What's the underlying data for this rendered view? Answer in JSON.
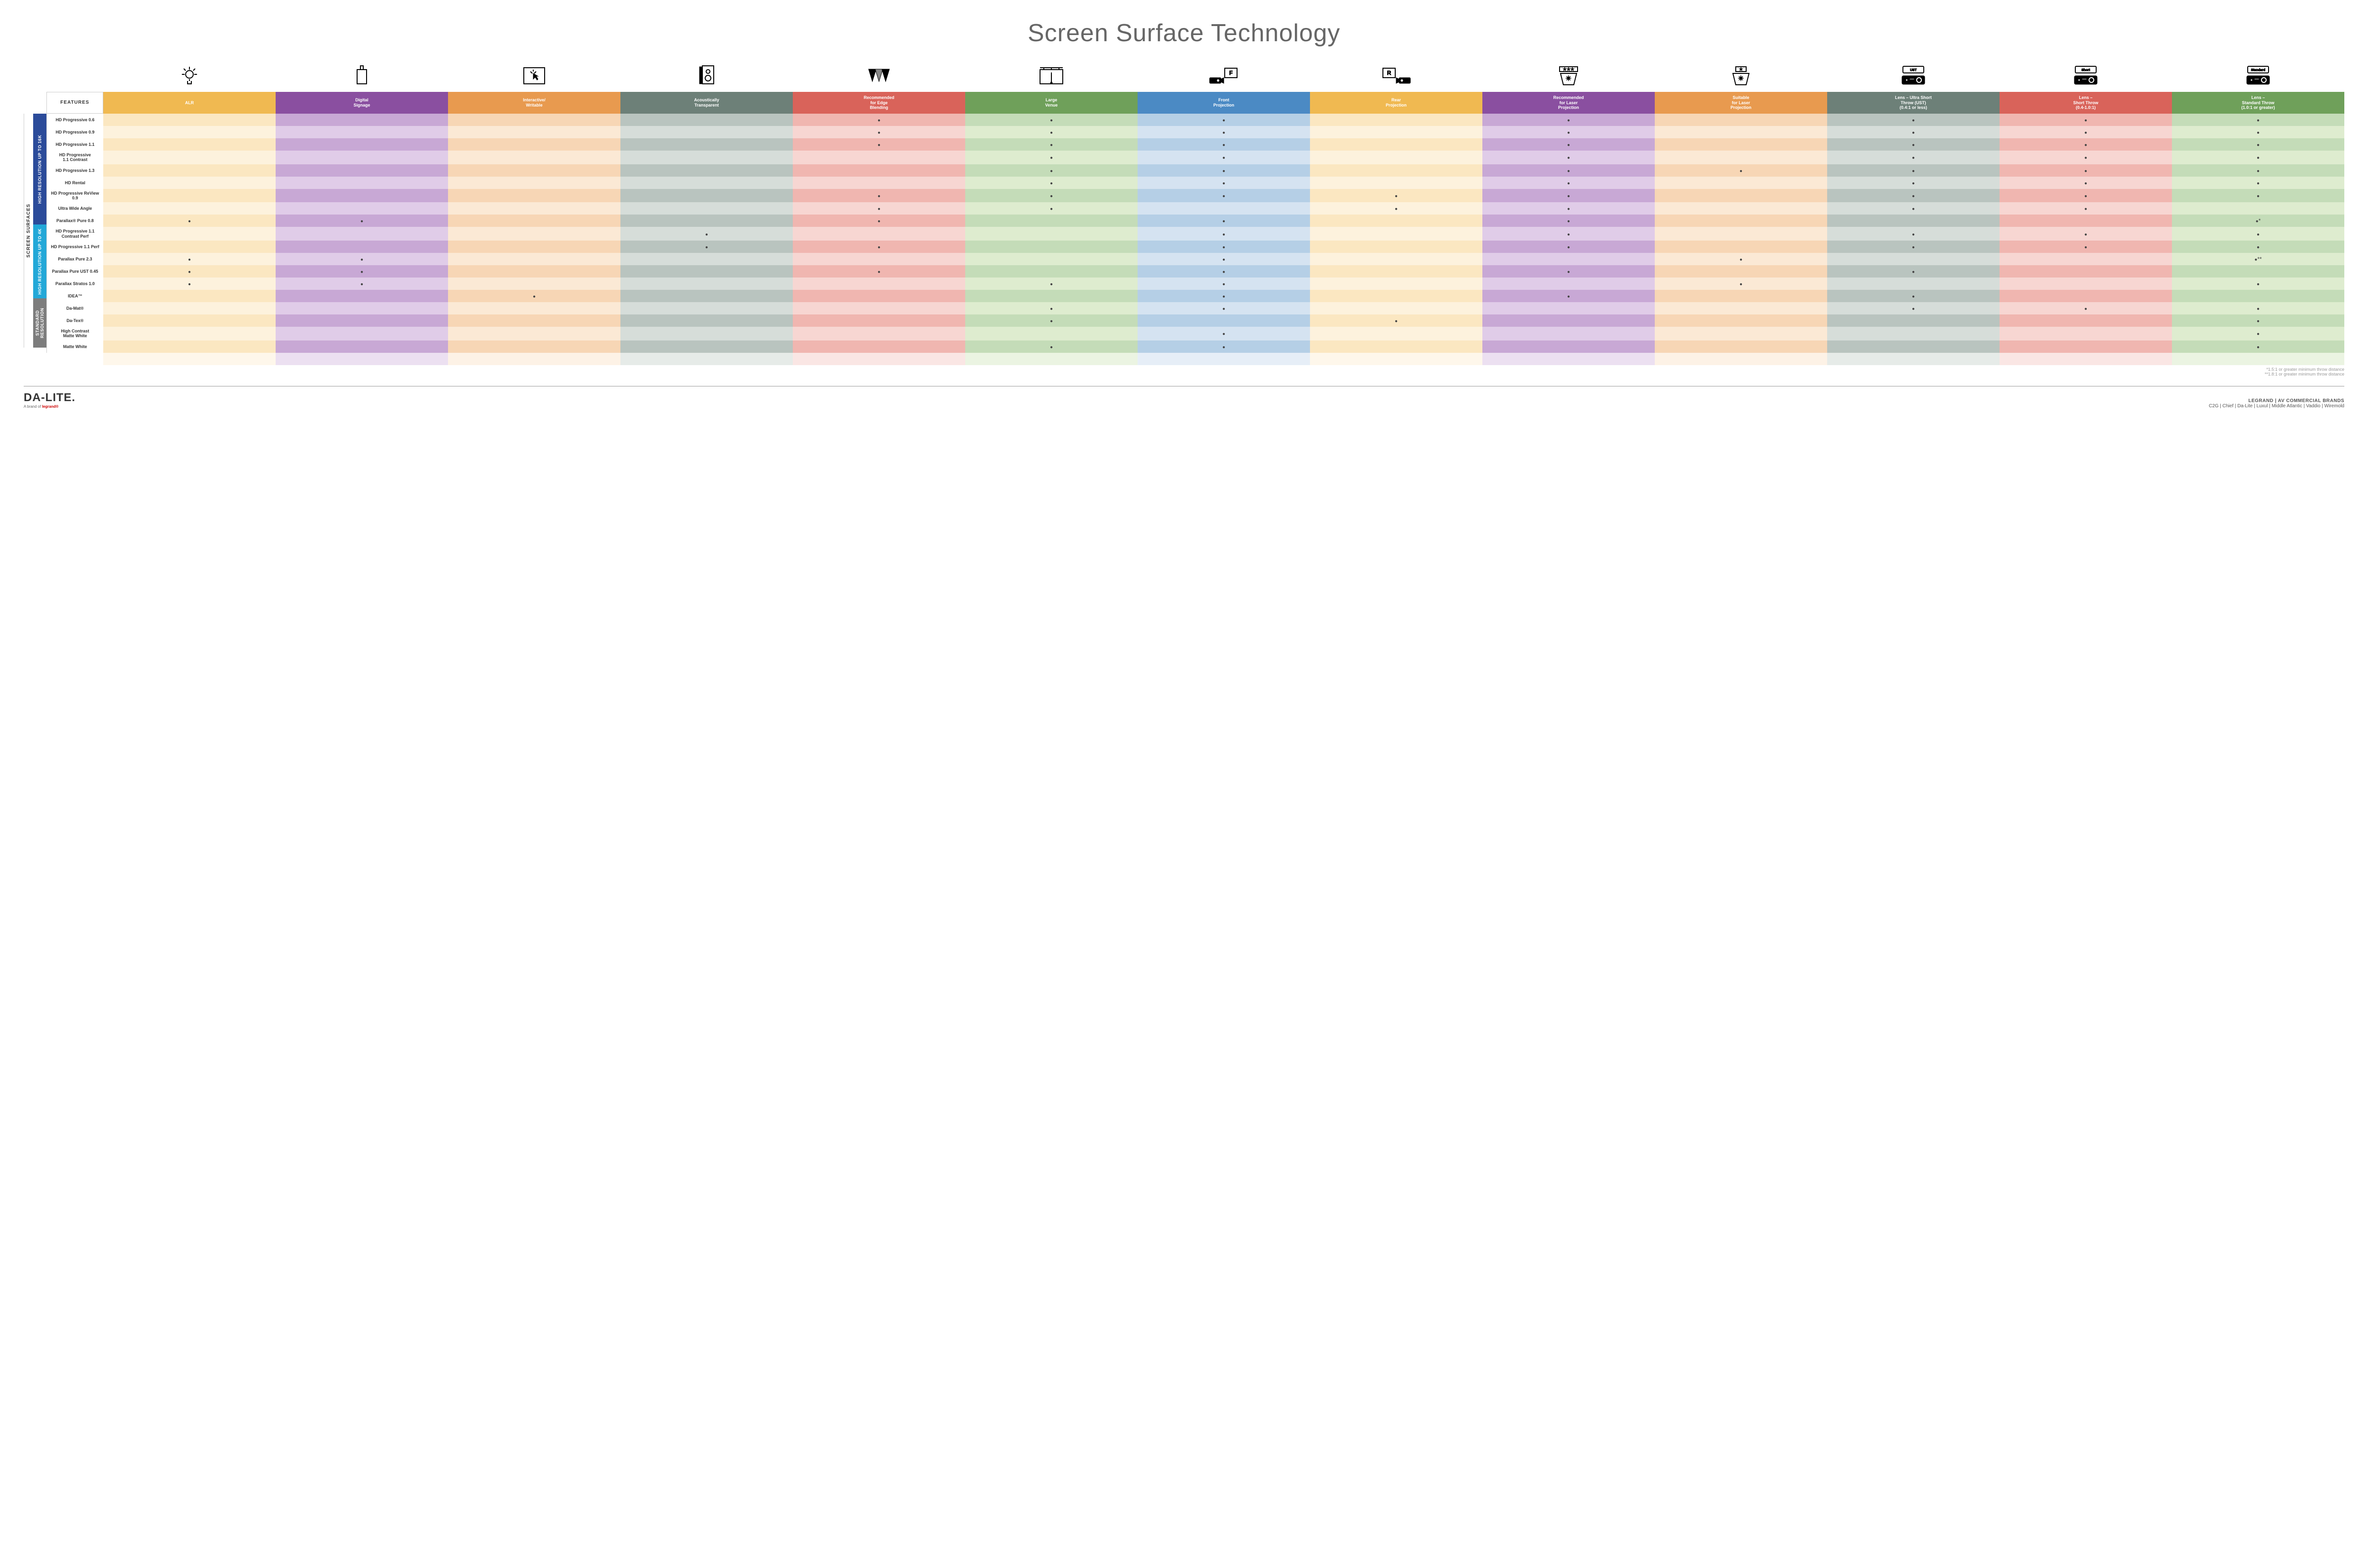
{
  "title": "Screen Surface Technology",
  "features_label": "FEATURES",
  "side_label": "SCREEN SURFACES",
  "colors": {
    "group_16k": "#2b4b9a",
    "group_4k": "#23a8d8",
    "group_std": "#7d7d7d",
    "dot": "#555555"
  },
  "columns": [
    {
      "key": "alr",
      "label": "ALR",
      "color": "#f0b951",
      "light": "#fbe7c1",
      "lighter": "#fdf2dd"
    },
    {
      "key": "signage",
      "label": "Digital\nSignage",
      "color": "#8a4fa0",
      "light": "#c8a8d5",
      "lighter": "#e0cce8"
    },
    {
      "key": "interactive",
      "label": "Interactive/\nWritable",
      "color": "#e89a4f",
      "light": "#f7d6b5",
      "lighter": "#fbe9d5"
    },
    {
      "key": "acoustic",
      "label": "Acoustically\nTransparent",
      "color": "#6d8078",
      "light": "#b9c4bf",
      "lighter": "#d6ddd9"
    },
    {
      "key": "edge",
      "label": "Recommended\nfor Edge\nBlending",
      "color": "#d9635a",
      "light": "#f0b6b0",
      "lighter": "#f7d6d2"
    },
    {
      "key": "large",
      "label": "Large\nVenue",
      "color": "#6fa05a",
      "light": "#c4dcb8",
      "lighter": "#deeccf"
    },
    {
      "key": "front",
      "label": "Front\nProjection",
      "color": "#4b8ac4",
      "light": "#b5cfe6",
      "lighter": "#d5e3f1"
    },
    {
      "key": "rear",
      "label": "Rear\nProjection",
      "color": "#f0b951",
      "light": "#fbe7c1",
      "lighter": "#fdf2dd"
    },
    {
      "key": "reclaser",
      "label": "Recommended\nfor Laser\nProjection",
      "color": "#8a4fa0",
      "light": "#c8a8d5",
      "lighter": "#e0cce8"
    },
    {
      "key": "suitlaser",
      "label": "Suitable\nfor Laser\nProjection",
      "color": "#e89a4f",
      "light": "#f7d6b5",
      "lighter": "#fbe9d5"
    },
    {
      "key": "ust",
      "label": "Lens – Ultra Short\nThrow (UST)\n(0.4:1 or less)",
      "color": "#6d8078",
      "light": "#b9c4bf",
      "lighter": "#d6ddd9"
    },
    {
      "key": "short",
      "label": "Lens –\nShort Throw\n(0.4-1.0:1)",
      "color": "#d9635a",
      "light": "#f0b6b0",
      "lighter": "#f7d6d2"
    },
    {
      "key": "std",
      "label": "Lens –\nStandard Throw\n(1.0:1 or greater)",
      "color": "#6fa05a",
      "light": "#c4dcb8",
      "lighter": "#deeccf"
    }
  ],
  "groups": [
    {
      "label": "HIGH RESOLUTION UP TO 16K",
      "color": "#2b4b9a",
      "rows": [
        {
          "label": "HD Progressive 0.6",
          "dots": [
            "edge",
            "large",
            "front",
            "reclaser",
            "ust",
            "short",
            "std"
          ]
        },
        {
          "label": "HD Progressive 0.9",
          "dots": [
            "edge",
            "large",
            "front",
            "reclaser",
            "ust",
            "short",
            "std"
          ]
        },
        {
          "label": "HD Progressive 1.1",
          "dots": [
            "edge",
            "large",
            "front",
            "reclaser",
            "ust",
            "short",
            "std"
          ]
        },
        {
          "label": "HD Progressive\n1.1 Contrast",
          "dots": [
            "large",
            "front",
            "reclaser",
            "ust",
            "short",
            "std"
          ]
        },
        {
          "label": "HD Progressive 1.3",
          "dots": [
            "large",
            "front",
            "reclaser",
            "suitlaser",
            "ust",
            "short",
            "std"
          ]
        },
        {
          "label": "HD Rental",
          "dots": [
            "large",
            "front",
            "reclaser",
            "ust",
            "short",
            "std"
          ]
        },
        {
          "label": "HD Progressive ReView 0.9",
          "dots": [
            "edge",
            "large",
            "front",
            "rear",
            "reclaser",
            "ust",
            "short",
            "std"
          ]
        },
        {
          "label": "Ultra Wide Angle",
          "dots": [
            "edge",
            "large",
            "rear",
            "reclaser",
            "ust",
            "short"
          ]
        },
        {
          "label": "Parallax® Pure 0.8",
          "dots": [
            "alr",
            "signage",
            "edge",
            "front",
            "reclaser",
            "std"
          ],
          "suffix": {
            "std": "*"
          }
        }
      ]
    },
    {
      "label": "HIGH RESOLUTION UP TO 4K",
      "color": "#23a8d8",
      "rows": [
        {
          "label": "HD Progressive 1.1\nContrast Perf",
          "dots": [
            "acoustic",
            "front",
            "reclaser",
            "ust",
            "short",
            "std"
          ]
        },
        {
          "label": "HD Progressive 1.1 Perf",
          "dots": [
            "acoustic",
            "edge",
            "front",
            "reclaser",
            "ust",
            "short",
            "std"
          ]
        },
        {
          "label": "Parallax Pure 2.3",
          "dots": [
            "alr",
            "signage",
            "front",
            "suitlaser",
            "std"
          ],
          "suffix": {
            "std": "**"
          }
        },
        {
          "label": "Parallax Pure UST 0.45",
          "dots": [
            "alr",
            "signage",
            "edge",
            "front",
            "reclaser",
            "ust"
          ]
        },
        {
          "label": "Parallax Stratos 1.0",
          "dots": [
            "alr",
            "signage",
            "large",
            "front",
            "suitlaser",
            "std"
          ]
        },
        {
          "label": "IDEA™",
          "dots": [
            "interactive",
            "front",
            "reclaser",
            "ust"
          ]
        }
      ]
    },
    {
      "label": "STANDARD\nRESOLUTION",
      "color": "#7d7d7d",
      "rows": [
        {
          "label": "Da-Mat®",
          "dots": [
            "large",
            "front",
            "ust",
            "short",
            "std"
          ]
        },
        {
          "label": "Da-Tex®",
          "dots": [
            "large",
            "rear",
            "std"
          ]
        },
        {
          "label": "High Contrast\nMatte White",
          "dots": [
            "front",
            "std"
          ]
        },
        {
          "label": "Matte White",
          "dots": [
            "large",
            "front",
            "std"
          ]
        }
      ]
    }
  ],
  "footnotes": [
    "*1.5:1 or greater minimum throw distance",
    "**1.8:1 or greater minimum throw distance"
  ],
  "footer": {
    "brand": "DA-LITE.",
    "brand_sub_prefix": "A brand of ",
    "brand_sub_logo": "legrand®",
    "right_top": "LEGRAND | AV COMMERCIAL BRANDS",
    "right_bottom": "C2G  |  Chief  |  Da-Lite  |  Luxul  |  Middle Atlantic  |  Vaddio  |  Wiremold"
  },
  "proj_labels": {
    "ust": "UST",
    "short": "Short",
    "std": "Standard"
  }
}
